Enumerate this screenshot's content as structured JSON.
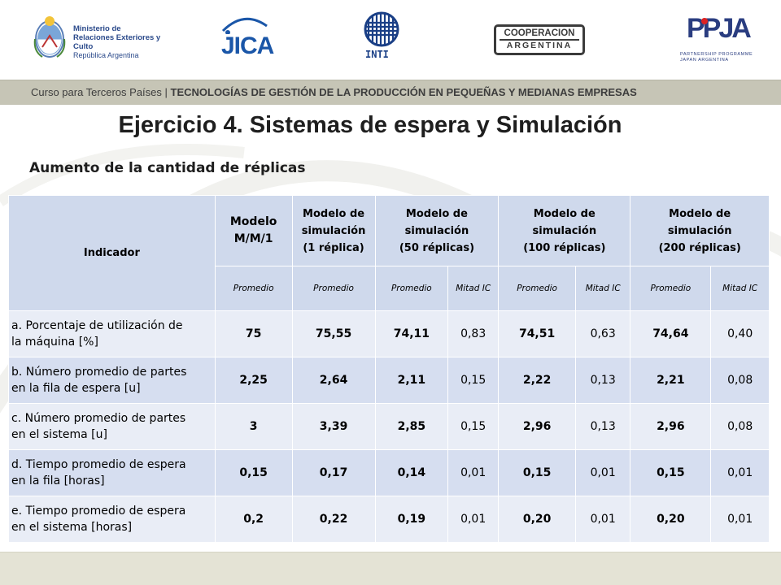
{
  "logos": {
    "ministerio_lines": [
      "Ministerio de",
      "Relaciones Exteriores y Culto",
      "República Argentina"
    ],
    "jica": "JICA",
    "inti": "INTI",
    "cooperacion_line1": "COOPERACION",
    "cooperacion_line2": "ARGENTINA",
    "ppja_mark": "PPJA",
    "ppja_line1": "PARTNERSHIP PROGRAMME",
    "ppja_line2": "JAPAN ARGENTINA"
  },
  "banner": {
    "prefix": "Curso para Terceros Países | ",
    "course": "TECNOLOGÍAS DE GESTIÓN DE LA PRODUCCIÓN EN PEQUEÑAS Y MEDIANAS EMPRESAS"
  },
  "title": "Ejercicio 4. Sistemas de espera y Simulación",
  "subtitle": "Aumento de la cantidad de réplicas",
  "table": {
    "indicator_header": "Indicador",
    "columns": [
      {
        "line1": "Modelo",
        "line2": "M/M/1",
        "line3": ""
      },
      {
        "line1": "Modelo de",
        "line2": "simulación",
        "line3": "(1 réplica)"
      },
      {
        "line1": "Modelo de",
        "line2": "simulación",
        "line3": "(50 réplicas)"
      },
      {
        "line1": "Modelo de",
        "line2": "simulación",
        "line3": "(100 réplicas)"
      },
      {
        "line1": "Modelo de",
        "line2": "simulación",
        "line3": "(200 réplicas)"
      }
    ],
    "subheaders": [
      "Promedio",
      "Promedio",
      "Promedio",
      "Mitad IC",
      "Promedio",
      "Mitad IC",
      "Promedio",
      "Mitad IC"
    ],
    "rows": [
      {
        "label_line1": "a. Porcentaje de utilización de",
        "label_line2": "la máquina [%]",
        "values": [
          "75",
          "75,55",
          "74,11",
          "0,83",
          "74,51",
          "0,63",
          "74,64",
          "0,40"
        ]
      },
      {
        "label_line1": "b. Número promedio de partes",
        "label_line2": "en la fila de espera [u]",
        "values": [
          "2,25",
          "2,64",
          "2,11",
          "0,15",
          "2,22",
          "0,13",
          "2,21",
          "0,08"
        ]
      },
      {
        "label_line1": "c. Número promedio de partes",
        "label_line2": "en el sistema [u]",
        "values": [
          "3",
          "3,39",
          "2,85",
          "0,15",
          "2,96",
          "0,13",
          "2,96",
          "0,08"
        ]
      },
      {
        "label_line1": "d. Tiempo promedio de espera",
        "label_line2": "en la fila [horas]",
        "values": [
          "0,15",
          "0,17",
          "0,14",
          "0,01",
          "0,15",
          "0,01",
          "0,15",
          "0,01"
        ]
      },
      {
        "label_line1": "e. Tiempo promedio de espera",
        "label_line2": "en el sistema [horas]",
        "values": [
          "0,2",
          "0,22",
          "0,19",
          "0,01",
          "0,20",
          "0,01",
          "0,20",
          "0,01"
        ]
      }
    ]
  }
}
